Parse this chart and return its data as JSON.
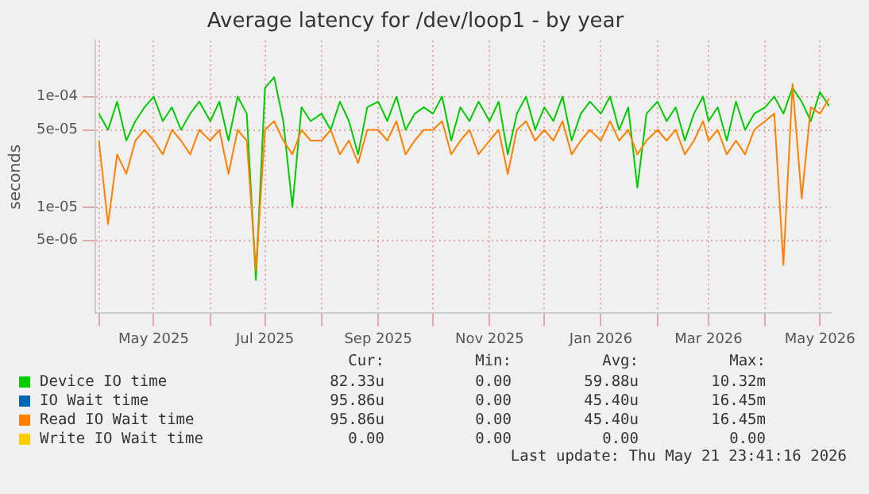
{
  "chart_data": {
    "type": "line",
    "title": "Average latency for /dev/loop1 - by year",
    "ylabel": "seconds",
    "log": "y",
    "grid": true,
    "legend": "bottom",
    "marker": "none",
    "line_style": "solid",
    "x": [
      "2025-04-01",
      "2025-04-06",
      "2025-04-11",
      "2025-04-16",
      "2025-04-21",
      "2025-04-26",
      "2025-05-01",
      "2025-05-06",
      "2025-05-11",
      "2025-05-16",
      "2025-05-21",
      "2025-05-26",
      "2025-06-01",
      "2025-06-06",
      "2025-06-11",
      "2025-06-16",
      "2025-06-21",
      "2025-06-26",
      "2025-07-01",
      "2025-07-06",
      "2025-07-11",
      "2025-07-16",
      "2025-07-21",
      "2025-07-26",
      "2025-08-01",
      "2025-08-06",
      "2025-08-11",
      "2025-08-16",
      "2025-08-21",
      "2025-08-26",
      "2025-09-01",
      "2025-09-06",
      "2025-09-11",
      "2025-09-16",
      "2025-09-21",
      "2025-09-26",
      "2025-10-01",
      "2025-10-06",
      "2025-10-11",
      "2025-10-16",
      "2025-10-21",
      "2025-10-26",
      "2025-11-01",
      "2025-11-06",
      "2025-11-11",
      "2025-11-16",
      "2025-11-21",
      "2025-11-26",
      "2025-12-01",
      "2025-12-06",
      "2025-12-11",
      "2025-12-16",
      "2025-12-21",
      "2025-12-26",
      "2026-01-01",
      "2026-01-06",
      "2026-01-11",
      "2026-01-16",
      "2026-01-21",
      "2026-01-26",
      "2026-02-01",
      "2026-02-06",
      "2026-02-11",
      "2026-02-16",
      "2026-02-21",
      "2026-02-26",
      "2026-03-01",
      "2026-03-06",
      "2026-03-11",
      "2026-03-16",
      "2026-03-21",
      "2026-03-26",
      "2026-04-01",
      "2026-04-06",
      "2026-04-11",
      "2026-04-16",
      "2026-04-21",
      "2026-04-26",
      "2026-05-01",
      "2026-05-06"
    ],
    "series": [
      {
        "name": "Device IO time",
        "color": "#00cc00",
        "values": [
          7e-05,
          5e-05,
          9e-05,
          4e-05,
          6e-05,
          8e-05,
          0.0001,
          6e-05,
          8e-05,
          5e-05,
          7e-05,
          9e-05,
          6e-05,
          9e-05,
          4e-05,
          0.0001,
          7e-05,
          2.2e-06,
          0.00012,
          0.00015,
          6e-05,
          1e-05,
          8e-05,
          6e-05,
          7e-05,
          5e-05,
          9e-05,
          6e-05,
          3e-05,
          8e-05,
          9e-05,
          6e-05,
          0.0001,
          5e-05,
          7e-05,
          8e-05,
          7e-05,
          0.0001,
          4e-05,
          8e-05,
          6e-05,
          9e-05,
          6e-05,
          9e-05,
          3e-05,
          7e-05,
          0.0001,
          5e-05,
          8e-05,
          6e-05,
          0.0001,
          4e-05,
          7e-05,
          9e-05,
          7e-05,
          0.0001,
          5e-05,
          8e-05,
          1.5e-05,
          7e-05,
          9e-05,
          6e-05,
          8e-05,
          4e-05,
          7e-05,
          0.0001,
          6e-05,
          8e-05,
          4e-05,
          9e-05,
          5e-05,
          7e-05,
          8e-05,
          0.0001,
          7e-05,
          0.00012,
          9e-05,
          6e-05,
          0.00011,
          8.2e-05
        ]
      },
      {
        "name": "IO Wait time",
        "color": "#0066b3",
        "values": [
          null,
          null,
          null,
          null,
          null,
          null,
          null,
          null,
          null,
          null,
          null,
          null,
          null,
          null,
          null,
          null,
          null,
          null,
          null,
          null,
          null,
          null,
          null,
          null,
          null,
          null,
          null,
          null,
          null,
          null,
          null,
          null,
          null,
          null,
          null,
          null,
          null,
          null,
          null,
          null,
          null,
          null,
          null,
          null,
          null,
          null,
          null,
          null,
          null,
          null,
          null,
          null,
          null,
          null,
          null,
          null,
          null,
          null,
          null,
          null,
          null,
          null,
          null,
          null,
          null,
          null,
          null,
          null,
          null,
          null,
          null,
          null,
          null,
          null,
          null,
          null,
          null,
          null,
          null,
          null
        ]
      },
      {
        "name": "Read IO Wait time",
        "color": "#ff8000",
        "values": [
          4e-05,
          7e-06,
          3e-05,
          2e-05,
          4e-05,
          5e-05,
          4e-05,
          3e-05,
          5e-05,
          4e-05,
          3e-05,
          5e-05,
          4e-05,
          5e-05,
          2e-05,
          5e-05,
          4e-05,
          2.7e-06,
          5e-05,
          6e-05,
          4e-05,
          3e-05,
          5e-05,
          4e-05,
          4e-05,
          5e-05,
          3e-05,
          4e-05,
          2.5e-05,
          5e-05,
          5e-05,
          4e-05,
          6e-05,
          3e-05,
          4e-05,
          5e-05,
          5e-05,
          6e-05,
          3e-05,
          4e-05,
          5e-05,
          3e-05,
          4e-05,
          5e-05,
          2e-05,
          5e-05,
          6e-05,
          4e-05,
          5e-05,
          4e-05,
          6e-05,
          3e-05,
          4e-05,
          5e-05,
          4e-05,
          6e-05,
          4e-05,
          5e-05,
          3e-05,
          4e-05,
          5e-05,
          4e-05,
          5e-05,
          3e-05,
          4e-05,
          6e-05,
          4e-05,
          5e-05,
          3e-05,
          4e-05,
          3e-05,
          5e-05,
          6e-05,
          7e-05,
          3e-06,
          0.00013,
          1.2e-05,
          8e-05,
          7e-05,
          9.6e-05
        ]
      },
      {
        "name": "Write IO Wait time",
        "color": "#ffcc00",
        "values": [
          null,
          null,
          null,
          null,
          null,
          null,
          null,
          null,
          null,
          null,
          null,
          null,
          null,
          null,
          null,
          null,
          null,
          null,
          null,
          null,
          null,
          null,
          null,
          null,
          null,
          null,
          null,
          null,
          null,
          null,
          null,
          null,
          null,
          null,
          null,
          null,
          null,
          null,
          null,
          null,
          null,
          null,
          null,
          null,
          null,
          null,
          null,
          null,
          null,
          null,
          null,
          null,
          null,
          null,
          null,
          null,
          null,
          null,
          null,
          null,
          null,
          null,
          null,
          null,
          null,
          null,
          null,
          null,
          null,
          null,
          null,
          null,
          null,
          null,
          null,
          null,
          null,
          null,
          null,
          null
        ]
      }
    ],
    "xlim": [
      "2025-03-30",
      "2026-05-07"
    ],
    "xticks": [
      {
        "value": "2025-04-01",
        "label": null
      },
      {
        "value": "2025-05-01",
        "label": "May 2025"
      },
      {
        "value": "2025-06-01",
        "label": null
      },
      {
        "value": "2025-07-01",
        "label": "Jul 2025"
      },
      {
        "value": "2025-08-01",
        "label": null
      },
      {
        "value": "2025-09-01",
        "label": "Sep 2025"
      },
      {
        "value": "2025-10-01",
        "label": null
      },
      {
        "value": "2025-11-01",
        "label": "Nov 2025"
      },
      {
        "value": "2025-12-01",
        "label": null
      },
      {
        "value": "2026-01-01",
        "label": "Jan 2026"
      },
      {
        "value": "2026-02-01",
        "label": null
      },
      {
        "value": "2026-03-01",
        "label": "Mar 2026"
      },
      {
        "value": "2026-04-01",
        "label": null
      },
      {
        "value": "2026-05-01",
        "label": "May 2026"
      }
    ],
    "ylim": [
      1.1e-06,
      0.00032
    ],
    "yticks": [
      {
        "value": 5e-06,
        "label": "5e-06"
      },
      {
        "value": 1e-05,
        "label": "1e-05"
      },
      {
        "value": 5e-05,
        "label": "5e-05"
      },
      {
        "value": 0.0001,
        "label": "1e-04"
      }
    ],
    "annotations": [
      "Cur:",
      "Min:",
      "Avg:",
      "Max:",
      "82.33u",
      "0.00",
      "59.88u",
      "10.32m",
      "95.86u",
      "0.00",
      "45.40u",
      "16.45m",
      "95.86u",
      "0.00",
      "45.40u",
      "16.45m",
      "0.00",
      "0.00",
      "0.00",
      "0.00",
      "Last update: Thu May 21 23:41:16 2026"
    ]
  }
}
